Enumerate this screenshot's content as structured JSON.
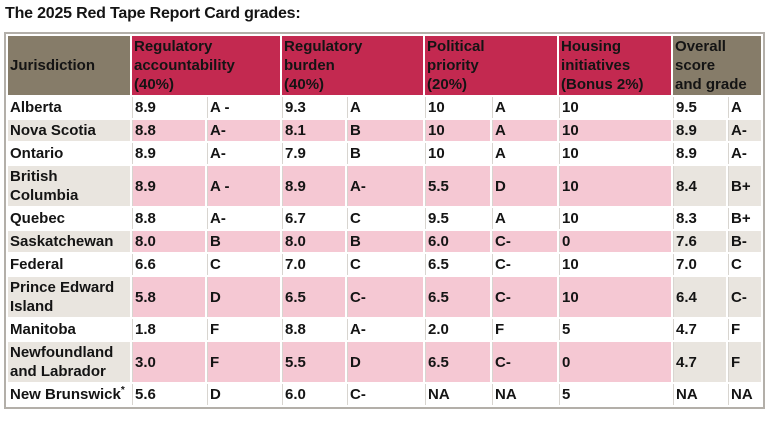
{
  "title": "The 2025 Red Tape Report Card grades:",
  "colors": {
    "header_red": "#c32950",
    "header_taupe": "#867c69",
    "row_pink": "#f5c8d3",
    "row_gray": "#e9e5df",
    "border_gray": "#b3afa9",
    "text": "#141414"
  },
  "chart_data": {
    "type": "table",
    "title": "The 2025 Red Tape Report Card grades:",
    "columns": [
      "Jurisdiction",
      "Regulatory accountability (40%) score",
      "Regulatory accountability (40%) grade",
      "Regulatory burden (40%) score",
      "Regulatory burden (40%) grade",
      "Political priority (20%) score",
      "Political priority (20%) grade",
      "Housing initiatives (Bonus 2%)",
      "Overall score",
      "Overall grade"
    ],
    "headers": [
      {
        "label": "Jurisdiction",
        "colspan": 1,
        "style": "taupe"
      },
      {
        "label": "Regulatory\naccountability\n(40%)",
        "colspan": 2,
        "style": "red"
      },
      {
        "label": "Regulatory\nburden\n(40%)",
        "colspan": 2,
        "style": "red"
      },
      {
        "label": "Political\npriority\n(20%)",
        "colspan": 2,
        "style": "red"
      },
      {
        "label": "Housing\ninitiatives\n(Bonus 2%)",
        "colspan": 1,
        "style": "red"
      },
      {
        "label": "Overall\nscore\nand grade",
        "colspan": 2,
        "style": "taupe"
      }
    ],
    "rows": [
      {
        "jurisdiction": "Alberta",
        "superscript": "",
        "shaded": false,
        "values": [
          "8.9",
          "A -",
          "9.3",
          "A",
          "10",
          "A",
          "10",
          "9.5",
          "A"
        ]
      },
      {
        "jurisdiction": "Nova Scotia",
        "superscript": "",
        "shaded": true,
        "values": [
          "8.8",
          "A-",
          "8.1",
          "B",
          "10",
          "A",
          "10",
          "8.9",
          "A-"
        ]
      },
      {
        "jurisdiction": "Ontario",
        "superscript": "",
        "shaded": false,
        "values": [
          "8.9",
          "A-",
          "7.9",
          "B",
          "10",
          "A",
          "10",
          "8.9",
          "A-"
        ]
      },
      {
        "jurisdiction": "British Columbia",
        "superscript": "",
        "shaded": true,
        "values": [
          "8.9",
          "A -",
          "8.9",
          "A-",
          "5.5",
          "D",
          "10",
          "8.4",
          "B+"
        ]
      },
      {
        "jurisdiction": "Quebec",
        "superscript": "",
        "shaded": false,
        "values": [
          "8.8",
          "A-",
          "6.7",
          "C",
          "9.5",
          "A",
          "10",
          "8.3",
          "B+"
        ]
      },
      {
        "jurisdiction": "Saskatchewan",
        "superscript": "",
        "shaded": true,
        "values": [
          "8.0",
          "B",
          "8.0",
          "B",
          "6.0",
          "C-",
          "0",
          "7.6",
          "B-"
        ]
      },
      {
        "jurisdiction": "Federal",
        "superscript": "",
        "shaded": false,
        "values": [
          "6.6",
          "C",
          "7.0",
          "C",
          "6.5",
          "C-",
          "10",
          "7.0",
          "C"
        ]
      },
      {
        "jurisdiction": "Prince Edward Island",
        "superscript": "",
        "shaded": true,
        "values": [
          "5.8",
          "D",
          "6.5",
          "C-",
          "6.5",
          "C-",
          "10",
          "6.4",
          "C-"
        ]
      },
      {
        "jurisdiction": "Manitoba",
        "superscript": "",
        "shaded": false,
        "values": [
          "1.8",
          "F",
          "8.8",
          "A-",
          "2.0",
          "F",
          "5",
          "4.7",
          "F"
        ]
      },
      {
        "jurisdiction": "Newfoundland and Labrador",
        "superscript": "",
        "shaded": true,
        "values": [
          "3.0",
          "F",
          "5.5",
          "D",
          "6.5",
          "C-",
          "0",
          "4.7",
          "F"
        ]
      },
      {
        "jurisdiction": "New Brunswick",
        "superscript": "*",
        "shaded": false,
        "values": [
          "5.6",
          "D",
          "6.0",
          "C-",
          "NA",
          "NA",
          "5",
          "NA",
          "NA"
        ]
      }
    ]
  }
}
